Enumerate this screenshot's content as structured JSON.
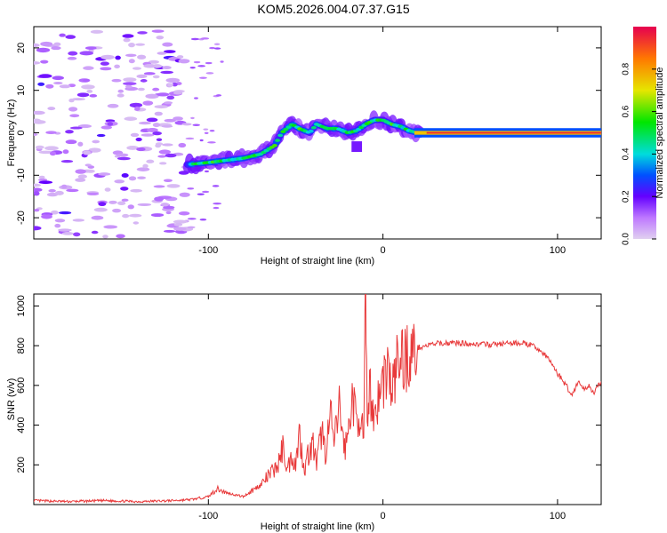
{
  "title": "KOM5.2026.004.07.37.G15",
  "chart_data": [
    {
      "type": "heatmap",
      "xlabel": "Height of straight line (km)",
      "ylabel": "Frequency (Hz)",
      "xlim": [
        -200,
        125
      ],
      "ylim": [
        -25,
        25
      ],
      "x_ticks": [
        -100,
        0,
        100
      ],
      "x_tick_labels": [
        "-100",
        "0",
        "100"
      ],
      "y_ticks": [
        -20,
        -10,
        0,
        10,
        20
      ],
      "y_tick_labels": [
        "-20",
        "-10",
        "0",
        "10",
        "20"
      ],
      "colorbar": {
        "label": "Normalized spectral amplitude",
        "range": [
          0,
          1
        ],
        "ticks": [
          0.0,
          0.2,
          0.4,
          0.6,
          0.8
        ],
        "tick_labels": [
          "0.0",
          "0.2",
          "0.4",
          "0.6",
          "0.8"
        ]
      },
      "ridge": {
        "x": [
          -112,
          -100,
          -90,
          -80,
          -70,
          -62,
          -58,
          -52,
          -48,
          -42,
          -38,
          -32,
          -26,
          -20,
          -15,
          -10,
          -5,
          0,
          5,
          10,
          15,
          20,
          125
        ],
        "y": [
          -7.5,
          -7,
          -6.5,
          -6,
          -5,
          -3,
          0,
          2,
          1,
          0,
          2,
          1,
          1,
          0,
          0.5,
          2,
          3,
          3,
          2,
          1.5,
          0.5,
          0,
          0
        ]
      }
    },
    {
      "type": "line",
      "xlabel": "Height of straight line (km)",
      "ylabel": "SNR (v/v)",
      "xlim": [
        -200,
        125
      ],
      "ylim": [
        0,
        1060
      ],
      "x_ticks": [
        -100,
        0,
        100
      ],
      "x_tick_labels": [
        "-100",
        "0",
        "100"
      ],
      "y_ticks": [
        200,
        400,
        600,
        800,
        1000
      ],
      "y_tick_labels": [
        "200",
        "400",
        "600",
        "800",
        "1000"
      ],
      "series": [
        {
          "name": "SNR",
          "color": "#e8393a",
          "x": [
            -200,
            -180,
            -160,
            -140,
            -120,
            -110,
            -100,
            -95,
            -90,
            -85,
            -80,
            -75,
            -70,
            -65,
            -60,
            -57,
            -55,
            -52,
            -50,
            -48,
            -45,
            -43,
            -40,
            -38,
            -35,
            -33,
            -30,
            -28,
            -25,
            -22,
            -20,
            -18,
            -15,
            -13,
            -11,
            -10,
            -9,
            -8,
            -5,
            -2,
            0,
            3,
            5,
            8,
            10,
            15,
            20,
            25,
            30,
            40,
            50,
            60,
            70,
            80,
            85,
            88,
            92,
            96,
            100,
            105,
            108,
            112,
            115,
            118,
            121,
            125
          ],
          "y": [
            20,
            15,
            20,
            15,
            20,
            25,
            40,
            80,
            60,
            50,
            40,
            70,
            100,
            150,
            200,
            300,
            170,
            250,
            200,
            360,
            180,
            250,
            300,
            200,
            380,
            260,
            450,
            300,
            500,
            280,
            350,
            550,
            420,
            470,
            300,
            1060,
            350,
            600,
            450,
            550,
            620,
            700,
            550,
            700,
            740,
            750,
            790,
            800,
            810,
            815,
            810,
            805,
            810,
            815,
            800,
            790,
            760,
            720,
            660,
            600,
            550,
            620,
            580,
            600,
            560,
            620
          ]
        }
      ]
    }
  ]
}
